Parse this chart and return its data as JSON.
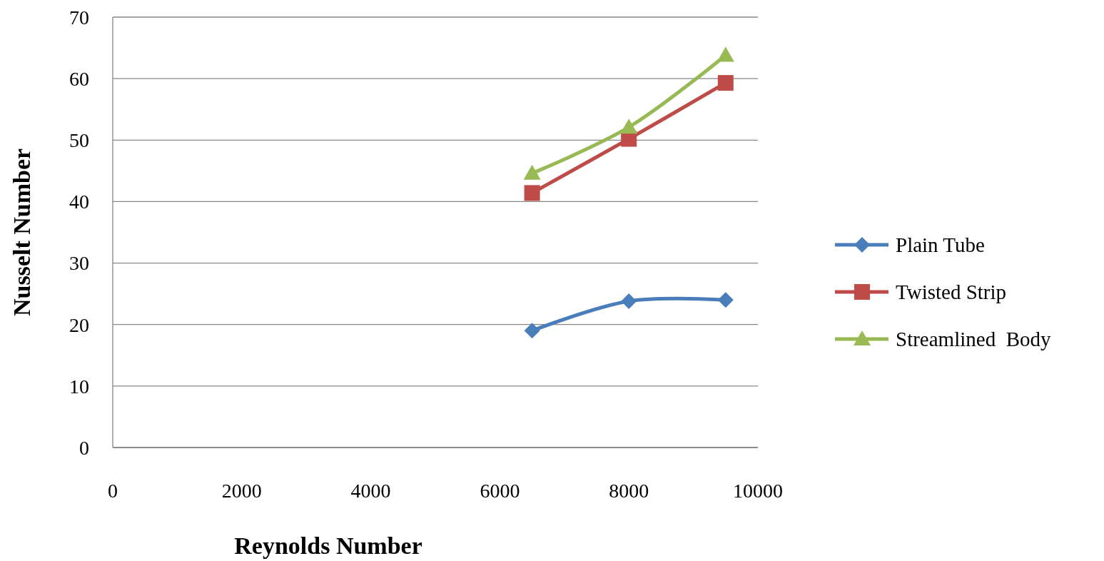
{
  "chart_data": {
    "type": "line",
    "xlabel": "Reynolds Number",
    "ylabel": "Nusselt Number",
    "x": [
      6500,
      8000,
      9500
    ],
    "series": [
      {
        "name": "Plain Tube",
        "color": "#4a7ebb",
        "marker": "diamond",
        "values": [
          19.0,
          23.8,
          24.0
        ]
      },
      {
        "name": "Twisted Strip",
        "color": "#be4b48",
        "marker": "square",
        "values": [
          41.4,
          50.2,
          59.3
        ]
      },
      {
        "name": "Streamlined  Body",
        "color": "#98b954",
        "marker": "triangle",
        "values": [
          44.6,
          52.1,
          63.8
        ]
      }
    ],
    "xlim": [
      0,
      10000
    ],
    "xticks": [
      0,
      2000,
      4000,
      6000,
      8000,
      10000
    ],
    "ylim": [
      0,
      70
    ],
    "yticks": [
      0,
      10,
      20,
      30,
      40,
      50,
      60,
      70
    ],
    "grid": "y",
    "legend": "right"
  }
}
